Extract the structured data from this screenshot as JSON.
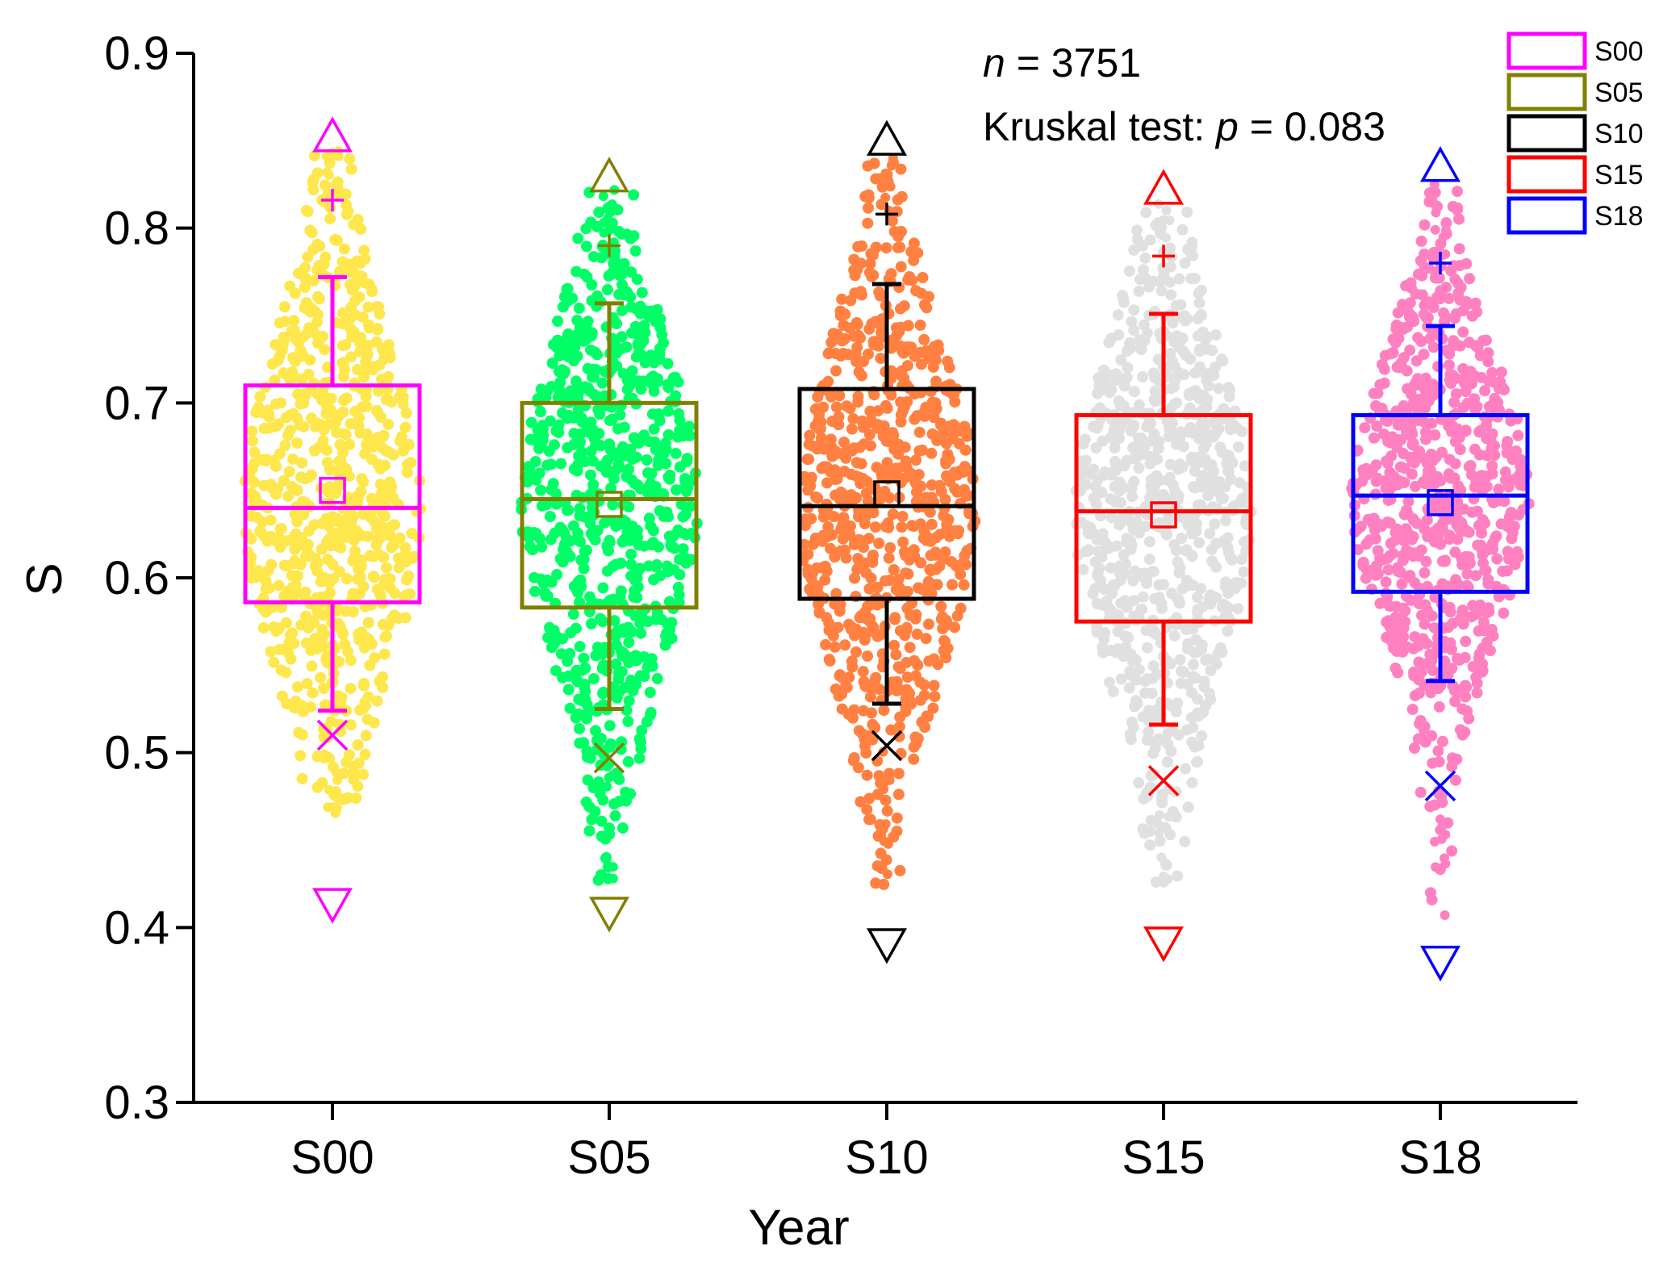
{
  "chart_data": {
    "type": "box",
    "title": "",
    "xlabel": "Year",
    "ylabel": "S",
    "ylim": [
      0.3,
      0.9
    ],
    "yticks": [
      "0.3",
      "0.4",
      "0.5",
      "0.6",
      "0.7",
      "0.8",
      "0.9"
    ],
    "categories": [
      "S00",
      "S05",
      "S10",
      "S15",
      "S18"
    ],
    "annotations": {
      "n_label": "n",
      "n_value": " = 3751",
      "test_label": "Kruskal test: ",
      "p_label": "p",
      "p_value": " = 0.083"
    },
    "legend": {
      "position": "top-right",
      "entries": [
        "S00",
        "S05",
        "S10",
        "S15",
        "S18"
      ]
    },
    "series": [
      {
        "name": "S00",
        "box_color": "#ff00ff",
        "point_color": "#fde74c",
        "q1": 0.586,
        "median": 0.64,
        "q3": 0.71,
        "mean": 0.65,
        "whisker_low": 0.524,
        "whisker_high": 0.772,
        "p1": 0.51,
        "p99": 0.816,
        "min": 0.413,
        "max": 0.853,
        "point_min": 0.465,
        "point_max": 0.845
      },
      {
        "name": "S05",
        "box_color": "#808000",
        "point_color": "#00ff66",
        "q1": 0.583,
        "median": 0.645,
        "q3": 0.7,
        "mean": 0.642,
        "whisker_low": 0.525,
        "whisker_high": 0.757,
        "p1": 0.497,
        "p99": 0.79,
        "min": 0.408,
        "max": 0.83,
        "point_min": 0.425,
        "point_max": 0.823
      },
      {
        "name": "S10",
        "box_color": "#000000",
        "point_color": "#ff8040",
        "q1": 0.588,
        "median": 0.641,
        "q3": 0.708,
        "mean": 0.648,
        "whisker_low": 0.528,
        "whisker_high": 0.768,
        "p1": 0.504,
        "p99": 0.808,
        "min": 0.39,
        "max": 0.851,
        "point_min": 0.422,
        "point_max": 0.843
      },
      {
        "name": "S15",
        "box_color": "#ff0000",
        "point_color": "#e0e0e0",
        "q1": 0.575,
        "median": 0.638,
        "q3": 0.693,
        "mean": 0.636,
        "whisker_low": 0.516,
        "whisker_high": 0.751,
        "p1": 0.484,
        "p99": 0.784,
        "min": 0.391,
        "max": 0.823,
        "point_min": 0.418,
        "point_max": 0.816
      },
      {
        "name": "S18",
        "box_color": "#0000ff",
        "point_color": "#ff80c0",
        "q1": 0.592,
        "median": 0.647,
        "q3": 0.693,
        "mean": 0.643,
        "whisker_low": 0.541,
        "whisker_high": 0.744,
        "p1": 0.481,
        "p99": 0.78,
        "min": 0.38,
        "max": 0.836,
        "point_min": 0.395,
        "point_max": 0.828
      }
    ]
  }
}
